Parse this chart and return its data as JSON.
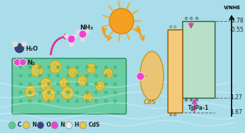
{
  "bg_color": "#a8dde9",
  "title": "",
  "energy_diagram": {
    "TpPa1_CB": -0.78,
    "TpPa1_VB": 1.27,
    "CdS_CB": -0.55,
    "CdS_VB": 1.67,
    "TpPa1_color": "#b8e0c8",
    "CdS_color": "#f5c97a",
    "TpPa1_border": "#555555",
    "CdS_border": "#555555",
    "arrow_color": "#cc44aa",
    "dashed_color": "#555555"
  },
  "axis_label": "V/NHE",
  "legend_items": [
    {
      "label": "C",
      "color": "#55cc88"
    },
    {
      "label": "N",
      "color": "#e8c840"
    },
    {
      "label": "O",
      "color": "#334488"
    },
    {
      "label": "N",
      "color": "#ee44cc"
    },
    {
      "label": "H",
      "color": "#e8e8e8"
    },
    {
      "label": "CdS",
      "color": "#e8c840"
    }
  ],
  "sun_color": "#f5a020",
  "water_color": "#70c8d8",
  "COF_color": "#60cc99",
  "CdS_particle_color": "#e8c840"
}
